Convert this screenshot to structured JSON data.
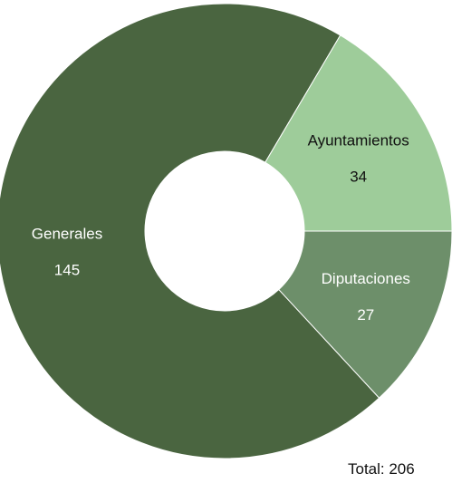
{
  "chart_data": {
    "type": "pie",
    "variant": "donut",
    "categories": [
      "Generales",
      "Ayuntamientos",
      "Diputaciones"
    ],
    "values": [
      145,
      34,
      27
    ],
    "colors": [
      "#4a6540",
      "#9ecc9a",
      "#6d8f6a"
    ],
    "label_colors": [
      "#ffffff",
      "#111111",
      "#ffffff"
    ],
    "total_text": "Total: 206",
    "title": "",
    "legend": "none"
  }
}
